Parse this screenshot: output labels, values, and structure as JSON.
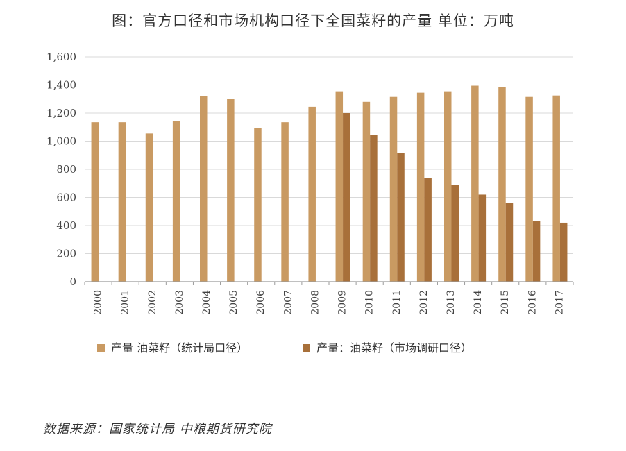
{
  "chart_data": {
    "type": "bar",
    "title": "图：官方口径和市场机构口径下全国菜籽的产量 单位：万吨",
    "source": "数据来源：国家统计局 中粮期货研究院",
    "xlabel": "",
    "ylabel": "",
    "ylim": [
      0,
      1600
    ],
    "yticks": [
      0,
      200,
      400,
      600,
      800,
      1000,
      1200,
      1400,
      1600
    ],
    "ytick_labels": [
      "0",
      "200",
      "400",
      "600",
      "800",
      "1,000",
      "1,200",
      "1,400",
      "1,600"
    ],
    "categories": [
      "2000",
      "2001",
      "2002",
      "2003",
      "2004",
      "2005",
      "2006",
      "2007",
      "2008",
      "2009",
      "2010",
      "2011",
      "2012",
      "2013",
      "2014",
      "2015",
      "2016",
      "2017"
    ],
    "grid": true,
    "legend_position": "bottom",
    "series": [
      {
        "name": "产量 油菜籽（统计局口径）",
        "color": "#C99A62",
        "values": [
          1135,
          1135,
          1055,
          1145,
          1320,
          1300,
          1095,
          1135,
          1245,
          1355,
          1280,
          1315,
          1345,
          1355,
          1395,
          1385,
          1315,
          1325
        ]
      },
      {
        "name": "产量：油菜籽（市场调研口径）",
        "color": "#A8703A",
        "values": [
          null,
          null,
          null,
          null,
          null,
          null,
          null,
          null,
          null,
          1200,
          1045,
          915,
          740,
          690,
          620,
          560,
          430,
          420
        ]
      }
    ]
  }
}
